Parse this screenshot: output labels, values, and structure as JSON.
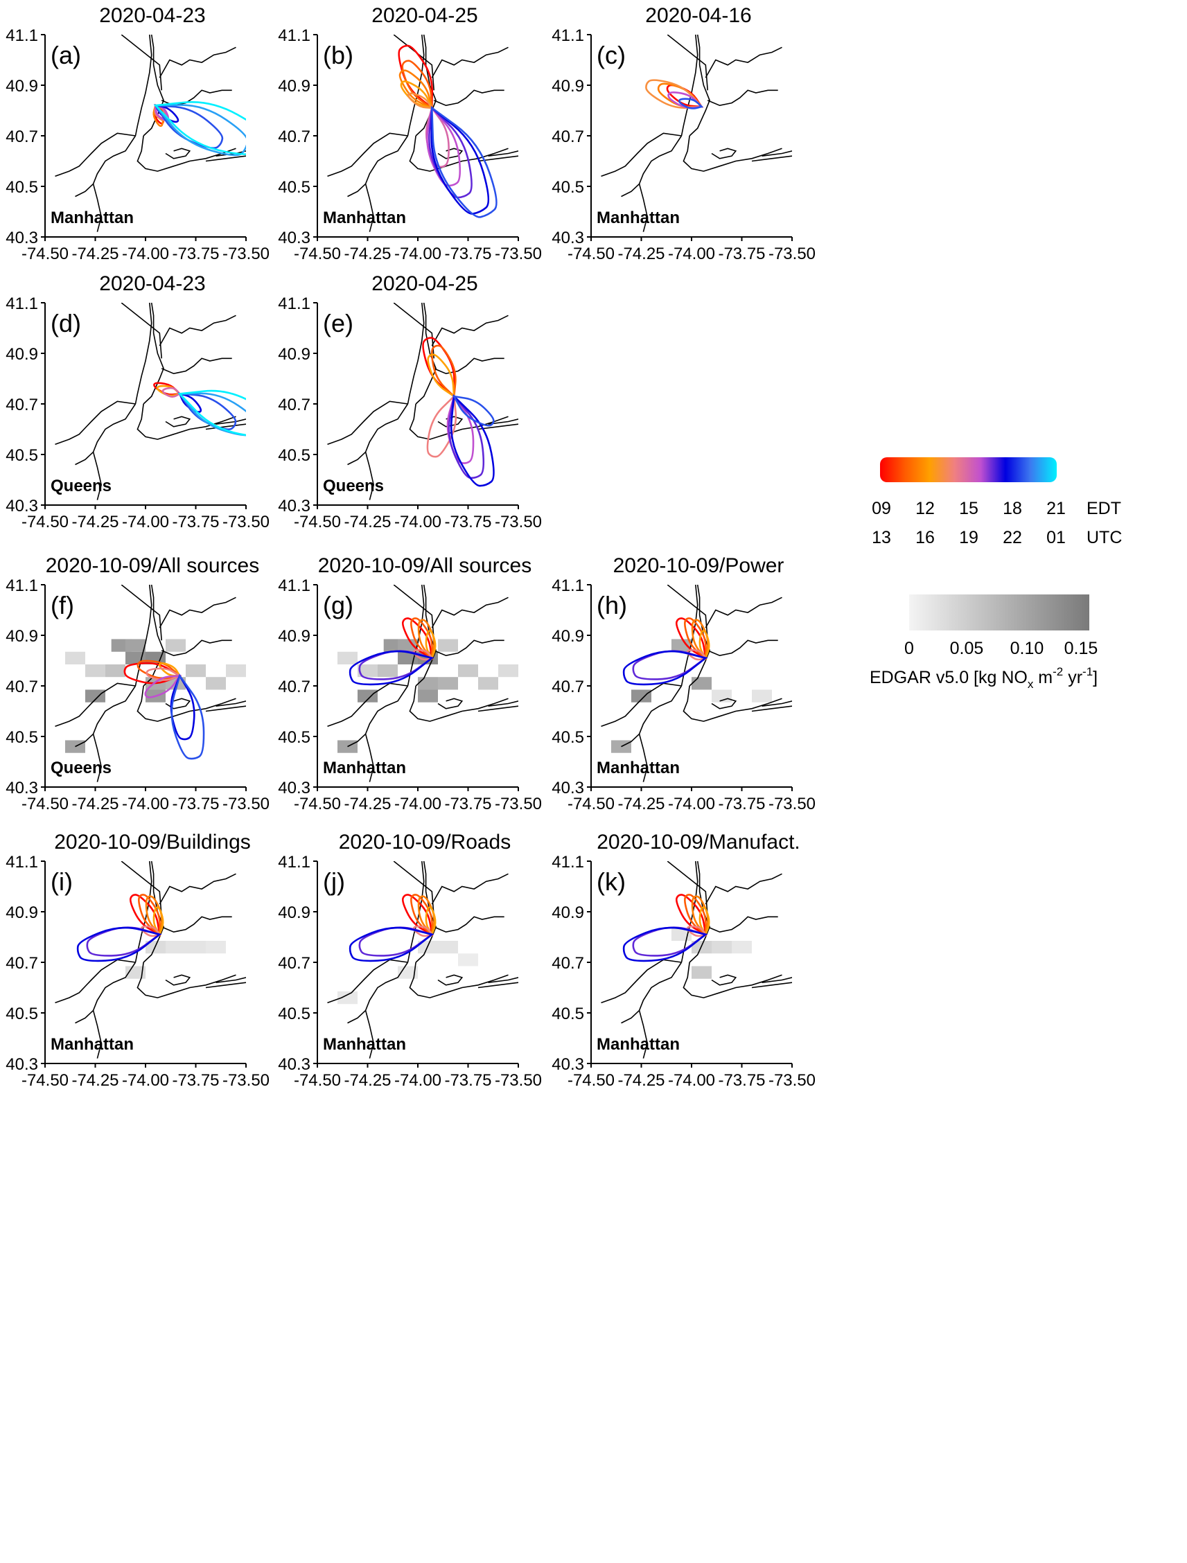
{
  "chart_data": {
    "type": "line",
    "xlim": [
      -74.5,
      -73.5
    ],
    "ylim": [
      40.3,
      41.1
    ],
    "xticks": [
      "-74.50",
      "-74.25",
      "-74.00",
      "-73.75",
      "-73.50"
    ],
    "yticks": [
      "40.3",
      "40.5",
      "40.7",
      "40.9",
      "41.1"
    ],
    "panels": [
      {
        "label": "(a)",
        "title": "2020-04-23",
        "site": "Manhattan",
        "emissions": "none",
        "center": [
          -73.95,
          40.82
        ],
        "lobes": [
          {
            "time": 9,
            "dir": -70,
            "len": 0.08
          },
          {
            "time": 11,
            "dir": -75,
            "len": 0.09
          },
          {
            "time": 13,
            "dir": -60,
            "len": 0.07
          },
          {
            "time": 15,
            "dir": -55,
            "len": 0.07
          },
          {
            "time": 16,
            "dir": -50,
            "len": 0.08
          },
          {
            "time": 18,
            "dir": -35,
            "len": 0.12
          },
          {
            "time": 19,
            "dir": -30,
            "len": 0.36
          },
          {
            "time": 20,
            "dir": -25,
            "len": 0.48
          },
          {
            "time": 21,
            "dir": -20,
            "len": 0.55
          }
        ]
      },
      {
        "label": "(b)",
        "title": "2020-04-25",
        "site": "Manhattan",
        "emissions": "none",
        "center": [
          -73.93,
          40.81
        ],
        "lobes": [
          {
            "time": 9,
            "dir": 115,
            "len": 0.32
          },
          {
            "time": 10,
            "dir": 120,
            "len": 0.25
          },
          {
            "time": 11,
            "dir": 130,
            "len": 0.22
          },
          {
            "time": 12,
            "dir": 140,
            "len": 0.18
          },
          {
            "time": 13,
            "dir": 150,
            "len": 0.12
          },
          {
            "time": 15,
            "dir": -80,
            "len": 0.28
          },
          {
            "time": 16,
            "dir": -75,
            "len": 0.38
          },
          {
            "time": 17,
            "dir": -70,
            "len": 0.45
          },
          {
            "time": 18,
            "dir": -65,
            "len": 0.55
          },
          {
            "time": 19,
            "dir": -62,
            "len": 0.58
          }
        ]
      },
      {
        "label": "(c)",
        "title": "2020-04-16",
        "site": "Manhattan",
        "emissions": "none",
        "center": [
          -73.95,
          40.815
        ],
        "lobes": [
          {
            "time": 9,
            "dir": 150,
            "len": 0.18
          },
          {
            "time": 11,
            "dir": 155,
            "len": 0.22
          },
          {
            "time": 13,
            "dir": 158,
            "len": 0.28
          },
          {
            "time": 16,
            "dir": 160,
            "len": 0.16
          },
          {
            "time": 19,
            "dir": 165,
            "len": 0.1
          }
        ]
      },
      {
        "label": "(d)",
        "title": "2020-04-23",
        "site": "Queens",
        "emissions": "none",
        "center": [
          -73.83,
          40.74
        ],
        "lobes": [
          {
            "time": 9,
            "dir": 160,
            "len": 0.12
          },
          {
            "time": 12,
            "dir": 165,
            "len": 0.1
          },
          {
            "time": 15,
            "dir": 170,
            "len": 0.07
          },
          {
            "time": 18,
            "dir": -40,
            "len": 0.12
          },
          {
            "time": 19,
            "dir": -30,
            "len": 0.3
          },
          {
            "time": 20,
            "dir": -25,
            "len": 0.4
          },
          {
            "time": 21,
            "dir": -20,
            "len": 0.48
          }
        ]
      },
      {
        "label": "(e)",
        "title": "2020-04-25",
        "site": "Queens",
        "emissions": "none",
        "center": [
          -73.82,
          40.73
        ],
        "lobes": [
          {
            "time": 9,
            "dir": 115,
            "len": 0.3
          },
          {
            "time": 10,
            "dir": 110,
            "len": 0.25
          },
          {
            "time": 12,
            "dir": 120,
            "len": 0.22
          },
          {
            "time": 14,
            "dir": -110,
            "len": 0.3
          },
          {
            "time": 16,
            "dir": -80,
            "len": 0.32
          },
          {
            "time": 17,
            "dir": -75,
            "len": 0.4
          },
          {
            "time": 18,
            "dir": -70,
            "len": 0.45
          },
          {
            "time": 19,
            "dir": -35,
            "len": 0.22
          }
        ]
      },
      {
        "label": "(f)",
        "title": "2020-10-09/All sources",
        "site": "Queens",
        "emissions": "all",
        "center": [
          -73.83,
          40.74
        ],
        "lobes": [
          {
            "time": 9,
            "dir": 175,
            "len": 0.26
          },
          {
            "time": 10,
            "dir": 165,
            "len": 0.2
          },
          {
            "time": 12,
            "dir": 150,
            "len": 0.1
          },
          {
            "time": 14,
            "dir": 175,
            "len": 0.15
          },
          {
            "time": 16,
            "dir": -150,
            "len": 0.18
          },
          {
            "time": 18,
            "dir": -85,
            "len": 0.3
          },
          {
            "time": 19,
            "dir": -80,
            "len": 0.4
          }
        ]
      },
      {
        "label": "(g)",
        "title": "2020-10-09/All sources",
        "site": "Manhattan",
        "emissions": "all",
        "center": [
          -73.93,
          40.81
        ],
        "lobes": [
          {
            "time": 9,
            "dir": 125,
            "len": 0.22
          },
          {
            "time": 10,
            "dir": 115,
            "len": 0.2
          },
          {
            "time": 11,
            "dir": 105,
            "len": 0.18
          },
          {
            "time": 12,
            "dir": 95,
            "len": 0.12
          },
          {
            "time": 14,
            "dir": 160,
            "len": 0.08
          },
          {
            "time": 17,
            "dir": -170,
            "len": 0.35
          },
          {
            "time": 18,
            "dir": -168,
            "len": 0.4
          }
        ]
      },
      {
        "label": "(h)",
        "title": "2020-10-09/Power",
        "site": "Manhattan",
        "emissions": "power",
        "center": [
          -73.93,
          40.81
        ],
        "lobes": [
          {
            "time": 9,
            "dir": 125,
            "len": 0.22
          },
          {
            "time": 10,
            "dir": 115,
            "len": 0.2
          },
          {
            "time": 11,
            "dir": 105,
            "len": 0.18
          },
          {
            "time": 12,
            "dir": 95,
            "len": 0.12
          },
          {
            "time": 14,
            "dir": 160,
            "len": 0.08
          },
          {
            "time": 17,
            "dir": -170,
            "len": 0.35
          },
          {
            "time": 18,
            "dir": -168,
            "len": 0.4
          }
        ]
      },
      {
        "label": "(i)",
        "title": "2020-10-09/Buildings",
        "site": "Manhattan",
        "emissions": "buildings",
        "center": [
          -73.93,
          40.81
        ],
        "lobes": [
          {
            "time": 9,
            "dir": 125,
            "len": 0.22
          },
          {
            "time": 10,
            "dir": 115,
            "len": 0.2
          },
          {
            "time": 11,
            "dir": 105,
            "len": 0.18
          },
          {
            "time": 12,
            "dir": 95,
            "len": 0.12
          },
          {
            "time": 14,
            "dir": 160,
            "len": 0.08
          },
          {
            "time": 17,
            "dir": -170,
            "len": 0.35
          },
          {
            "time": 18,
            "dir": -168,
            "len": 0.4
          }
        ]
      },
      {
        "label": "(j)",
        "title": "2020-10-09/Roads",
        "site": "Manhattan",
        "emissions": "roads",
        "center": [
          -73.93,
          40.81
        ],
        "lobes": [
          {
            "time": 9,
            "dir": 125,
            "len": 0.22
          },
          {
            "time": 10,
            "dir": 115,
            "len": 0.2
          },
          {
            "time": 11,
            "dir": 105,
            "len": 0.18
          },
          {
            "time": 12,
            "dir": 95,
            "len": 0.12
          },
          {
            "time": 14,
            "dir": 160,
            "len": 0.08
          },
          {
            "time": 17,
            "dir": -170,
            "len": 0.35
          },
          {
            "time": 18,
            "dir": -168,
            "len": 0.4
          }
        ]
      },
      {
        "label": "(k)",
        "title": "2020-10-09/Manufact.",
        "site": "Manhattan",
        "emissions": "manufact",
        "center": [
          -73.93,
          40.81
        ],
        "lobes": [
          {
            "time": 9,
            "dir": 125,
            "len": 0.22
          },
          {
            "time": 10,
            "dir": 115,
            "len": 0.2
          },
          {
            "time": 11,
            "dir": 105,
            "len": 0.18
          },
          {
            "time": 12,
            "dir": 95,
            "len": 0.12
          },
          {
            "time": 14,
            "dir": 160,
            "len": 0.08
          },
          {
            "time": 17,
            "dir": -170,
            "len": 0.35
          },
          {
            "time": 18,
            "dir": -168,
            "len": 0.4
          }
        ]
      }
    ],
    "emission_grids": {
      "all": [
        {
          "x": -74.12,
          "y": 40.86,
          "v": 0.11
        },
        {
          "x": -74.05,
          "y": 40.86,
          "v": 0.1
        },
        {
          "x": -74.05,
          "y": 40.81,
          "v": 0.12
        },
        {
          "x": -73.95,
          "y": 40.81,
          "v": 0.13
        },
        {
          "x": -73.95,
          "y": 40.71,
          "v": 0.09
        },
        {
          "x": -73.85,
          "y": 40.71,
          "v": 0.08
        },
        {
          "x": -74.25,
          "y": 40.66,
          "v": 0.12
        },
        {
          "x": -73.95,
          "y": 40.66,
          "v": 0.11
        },
        {
          "x": -74.35,
          "y": 40.46,
          "v": 0.1
        },
        {
          "x": -74.15,
          "y": 40.76,
          "v": 0.06
        },
        {
          "x": -73.75,
          "y": 40.76,
          "v": 0.05
        },
        {
          "x": -73.65,
          "y": 40.71,
          "v": 0.05
        },
        {
          "x": -74.25,
          "y": 40.76,
          "v": 0.04
        },
        {
          "x": -73.85,
          "y": 40.86,
          "v": 0.05
        },
        {
          "x": -74.35,
          "y": 40.81,
          "v": 0.03
        },
        {
          "x": -73.55,
          "y": 40.76,
          "v": 0.03
        }
      ],
      "power": [
        {
          "x": -74.05,
          "y": 40.86,
          "v": 0.09
        },
        {
          "x": -73.95,
          "y": 40.71,
          "v": 0.1
        },
        {
          "x": -74.25,
          "y": 40.66,
          "v": 0.12
        },
        {
          "x": -74.35,
          "y": 40.46,
          "v": 0.09
        },
        {
          "x": -73.85,
          "y": 40.66,
          "v": 0.02
        },
        {
          "x": -73.65,
          "y": 40.66,
          "v": 0.02
        }
      ],
      "buildings": [
        {
          "x": -73.95,
          "y": 40.76,
          "v": 0.03
        },
        {
          "x": -74.05,
          "y": 40.66,
          "v": 0.03
        },
        {
          "x": -73.85,
          "y": 40.76,
          "v": 0.02
        },
        {
          "x": -73.75,
          "y": 40.76,
          "v": 0.02
        },
        {
          "x": -73.65,
          "y": 40.76,
          "v": 0.015
        }
      ],
      "roads": [
        {
          "x": -73.95,
          "y": 40.76,
          "v": 0.02
        },
        {
          "x": -73.85,
          "y": 40.76,
          "v": 0.02
        },
        {
          "x": -74.05,
          "y": 40.66,
          "v": 0.015
        },
        {
          "x": -74.35,
          "y": 40.56,
          "v": 0.015
        },
        {
          "x": -73.75,
          "y": 40.71,
          "v": 0.01
        }
      ],
      "manufact": [
        {
          "x": -73.95,
          "y": 40.66,
          "v": 0.05
        },
        {
          "x": -73.95,
          "y": 40.76,
          "v": 0.04
        },
        {
          "x": -73.85,
          "y": 40.76,
          "v": 0.03
        },
        {
          "x": -74.05,
          "y": 40.81,
          "v": 0.02
        },
        {
          "x": -73.75,
          "y": 40.76,
          "v": 0.015
        }
      ]
    },
    "time_legend": {
      "edt_ticks": [
        "09",
        "12",
        "15",
        "18",
        "21"
      ],
      "utc_ticks": [
        "13",
        "16",
        "19",
        "22",
        "01"
      ],
      "edt_label": "EDT",
      "utc_label": "UTC",
      "colors": [
        "#ff0000",
        "#ff5a00",
        "#ffa000",
        "#f08080",
        "#c050d0",
        "#0000e0",
        "#3c78f0",
        "#00f0ff"
      ]
    },
    "emission_legend": {
      "ticks": [
        "0",
        "0.05",
        "0.10",
        "0.15"
      ],
      "label_main": "EDGAR v5.0 [kg NO",
      "label_sub": "x",
      "label_mid": " m",
      "label_sup1": "-2",
      "label_mid2": " yr",
      "label_sup2": "-1",
      "label_end": "]",
      "range": [
        0,
        0.15
      ]
    }
  }
}
